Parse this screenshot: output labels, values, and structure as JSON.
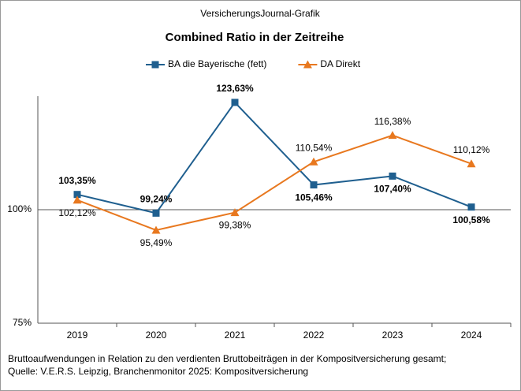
{
  "chart_data": {
    "type": "line",
    "header": "VersicherungsJournal-Grafik",
    "title": "Combined Ratio in der Zeitreihe",
    "categories": [
      "2019",
      "2020",
      "2021",
      "2022",
      "2023",
      "2024"
    ],
    "series": [
      {
        "name": "BA die Bayerische (fett)",
        "color": "#1f5f8f",
        "marker": "square",
        "values": [
          103.35,
          99.24,
          123.63,
          105.46,
          107.4,
          100.58
        ],
        "value_labels": [
          "103,35%",
          "99,24%",
          "123,63%",
          "105,46%",
          "107,40%",
          "100,58%"
        ]
      },
      {
        "name": "DA Direkt",
        "color": "#e8781f",
        "marker": "triangle",
        "values": [
          102.12,
          95.49,
          99.38,
          110.54,
          116.38,
          110.12
        ],
        "value_labels": [
          "102,12%",
          "95,49%",
          "99,38%",
          "110,54%",
          "116,38%",
          "110,12%"
        ]
      }
    ],
    "ylim": [
      75,
      125
    ],
    "yticks": [
      {
        "value": 75,
        "label": "75%"
      },
      {
        "value": 100,
        "label": "100%"
      }
    ],
    "grid": true,
    "footnote": [
      "Bruttoaufwendungen  in Relation zu den verdienten  Bruttobeiträgen  in der Kompositversicherung  gesamt;",
      "Quelle:  V.E.R.S. Leipzig,  Branchenmonitor  2025:  Kompositversicherung"
    ]
  }
}
